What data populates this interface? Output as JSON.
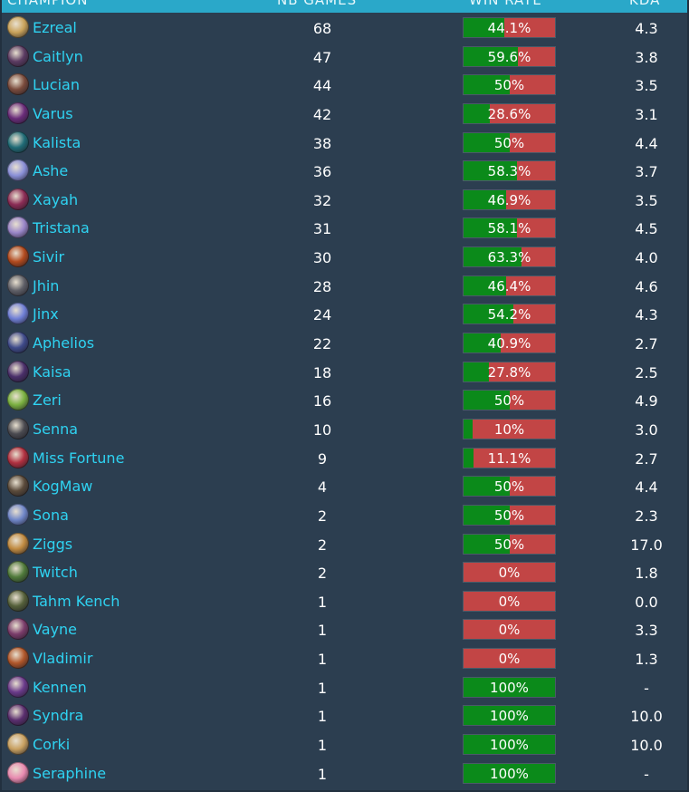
{
  "header": {
    "champion": "CHAMPION",
    "games": "NB GAMES",
    "win_rate": "WIN RATE",
    "kda": "KDA"
  },
  "colors": {
    "win": "#0b8a1a",
    "loss": "#c24545",
    "name": "#2fd3f2",
    "header": "#2aa8c9",
    "background": "#2c3e50"
  },
  "champions": [
    {
      "name": "Ezreal",
      "games": "68",
      "win_rate_label": "44.1%",
      "win_rate": 44.1,
      "kda": "4.3",
      "avatar_color": "#c9a25a"
    },
    {
      "name": "Caitlyn",
      "games": "47",
      "win_rate_label": "59.6%",
      "win_rate": 59.6,
      "kda": "3.8",
      "avatar_color": "#5b3b62"
    },
    {
      "name": "Lucian",
      "games": "44",
      "win_rate_label": "50%",
      "win_rate": 50,
      "kda": "3.5",
      "avatar_color": "#7a4b3c"
    },
    {
      "name": "Varus",
      "games": "42",
      "win_rate_label": "28.6%",
      "win_rate": 28.6,
      "kda": "3.1",
      "avatar_color": "#6a2c7a"
    },
    {
      "name": "Kalista",
      "games": "38",
      "win_rate_label": "50%",
      "win_rate": 50,
      "kda": "4.4",
      "avatar_color": "#1f6b76"
    },
    {
      "name": "Ashe",
      "games": "36",
      "win_rate_label": "58.3%",
      "win_rate": 58.3,
      "kda": "3.7",
      "avatar_color": "#8a90d8"
    },
    {
      "name": "Xayah",
      "games": "32",
      "win_rate_label": "46.9%",
      "win_rate": 46.9,
      "kda": "3.5",
      "avatar_color": "#8b2c55"
    },
    {
      "name": "Tristana",
      "games": "31",
      "win_rate_label": "58.1%",
      "win_rate": 58.1,
      "kda": "4.5",
      "avatar_color": "#9a86c8"
    },
    {
      "name": "Sivir",
      "games": "30",
      "win_rate_label": "63.3%",
      "win_rate": 63.3,
      "kda": "4.0",
      "avatar_color": "#b24a1e"
    },
    {
      "name": "Jhin",
      "games": "28",
      "win_rate_label": "46.4%",
      "win_rate": 46.4,
      "kda": "4.6",
      "avatar_color": "#5e5e66"
    },
    {
      "name": "Jinx",
      "games": "24",
      "win_rate_label": "54.2%",
      "win_rate": 54.2,
      "kda": "4.3",
      "avatar_color": "#6f7fd6"
    },
    {
      "name": "Aphelios",
      "games": "22",
      "win_rate_label": "40.9%",
      "win_rate": 40.9,
      "kda": "2.7",
      "avatar_color": "#3e4a8a"
    },
    {
      "name": "Kaisa",
      "games": "18",
      "win_rate_label": "27.8%",
      "win_rate": 27.8,
      "kda": "2.5",
      "avatar_color": "#4a2f6a"
    },
    {
      "name": "Zeri",
      "games": "16",
      "win_rate_label": "50%",
      "win_rate": 50,
      "kda": "4.9",
      "avatar_color": "#7ab040"
    },
    {
      "name": "Senna",
      "games": "10",
      "win_rate_label": "10%",
      "win_rate": 10,
      "kda": "3.0",
      "avatar_color": "#4a4a50"
    },
    {
      "name": "Miss Fortune",
      "games": "9",
      "win_rate_label": "11.1%",
      "win_rate": 11.1,
      "kda": "2.7",
      "avatar_color": "#b03040"
    },
    {
      "name": "KogMaw",
      "games": "4",
      "win_rate_label": "50%",
      "win_rate": 50,
      "kda": "4.4",
      "avatar_color": "#5a4a3a"
    },
    {
      "name": "Sona",
      "games": "2",
      "win_rate_label": "50%",
      "win_rate": 50,
      "kda": "2.3",
      "avatar_color": "#6f86c8"
    },
    {
      "name": "Ziggs",
      "games": "2",
      "win_rate_label": "50%",
      "win_rate": 50,
      "kda": "17.0",
      "avatar_color": "#c08a40"
    },
    {
      "name": "Twitch",
      "games": "2",
      "win_rate_label": "0%",
      "win_rate": 0,
      "kda": "1.8",
      "avatar_color": "#4f7a3a"
    },
    {
      "name": "Tahm Kench",
      "games": "1",
      "win_rate_label": "0%",
      "win_rate": 0,
      "kda": "0.0",
      "avatar_color": "#55603a"
    },
    {
      "name": "Vayne",
      "games": "1",
      "win_rate_label": "0%",
      "win_rate": 0,
      "kda": "3.3",
      "avatar_color": "#7a3c6a"
    },
    {
      "name": "Vladimir",
      "games": "1",
      "win_rate_label": "0%",
      "win_rate": 0,
      "kda": "1.3",
      "avatar_color": "#b0562a"
    },
    {
      "name": "Kennen",
      "games": "1",
      "win_rate_label": "100%",
      "win_rate": 100,
      "kda": "-",
      "avatar_color": "#6a3a8a"
    },
    {
      "name": "Syndra",
      "games": "1",
      "win_rate_label": "100%",
      "win_rate": 100,
      "kda": "10.0",
      "avatar_color": "#5a2e6e"
    },
    {
      "name": "Corki",
      "games": "1",
      "win_rate_label": "100%",
      "win_rate": 100,
      "kda": "10.0",
      "avatar_color": "#c8a060"
    },
    {
      "name": "Seraphine",
      "games": "1",
      "win_rate_label": "100%",
      "win_rate": 100,
      "kda": "-",
      "avatar_color": "#e88ab0"
    }
  ]
}
